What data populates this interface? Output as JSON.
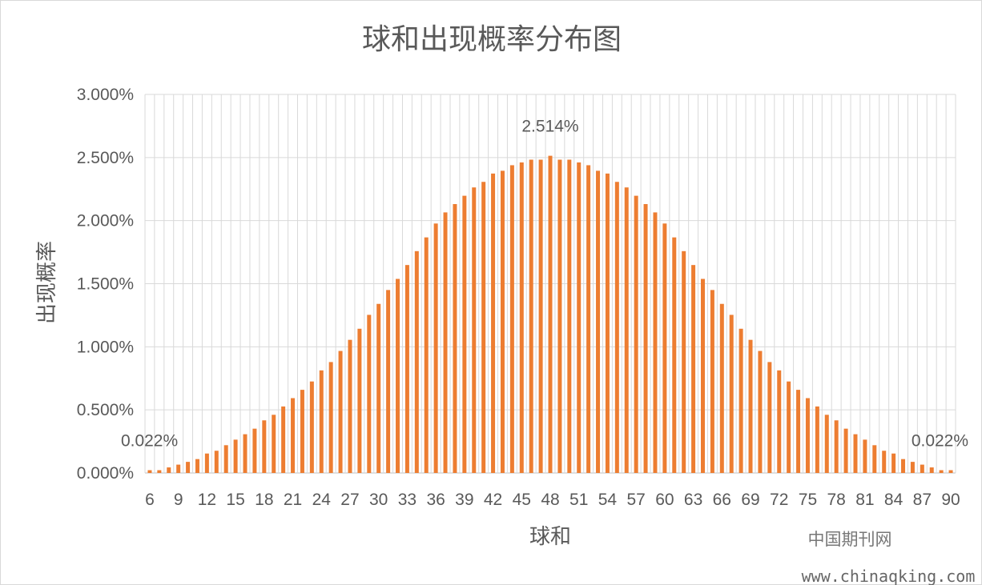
{
  "chart_data": {
    "type": "bar",
    "title": "球和出现概率分布图",
    "xlabel": "球和",
    "ylabel": "出现概率",
    "x_min": 6,
    "x_max": 90,
    "x_tick_labels": [
      "6",
      "9",
      "12",
      "15",
      "18",
      "21",
      "24",
      "27",
      "30",
      "33",
      "36",
      "39",
      "42",
      "45",
      "48",
      "51",
      "54",
      "57",
      "60",
      "63",
      "66",
      "69",
      "72",
      "75",
      "78",
      "81",
      "84",
      "87",
      "90"
    ],
    "y_tick_labels": [
      "0.000%",
      "0.500%",
      "1.000%",
      "1.500%",
      "2.000%",
      "2.500%",
      "3.000%"
    ],
    "ylim": [
      0,
      3
    ],
    "y_unit": "%",
    "grid": true,
    "legend": "none",
    "bar_color": "#ed7d31",
    "values": [
      0.022,
      0.022,
      0.044,
      0.066,
      0.088,
      0.11,
      0.154,
      0.176,
      0.22,
      0.264,
      0.307,
      0.351,
      0.417,
      0.461,
      0.527,
      0.593,
      0.659,
      0.725,
      0.813,
      0.879,
      0.967,
      1.055,
      1.143,
      1.253,
      1.34,
      1.45,
      1.538,
      1.648,
      1.758,
      1.867,
      1.977,
      2.065,
      2.131,
      2.197,
      2.263,
      2.307,
      2.373,
      2.395,
      2.439,
      2.461,
      2.483,
      2.483,
      2.514,
      2.483,
      2.483,
      2.461,
      2.439,
      2.395,
      2.373,
      2.307,
      2.263,
      2.197,
      2.131,
      2.065,
      1.977,
      1.867,
      1.758,
      1.648,
      1.538,
      1.45,
      1.34,
      1.253,
      1.143,
      1.055,
      0.967,
      0.879,
      0.813,
      0.725,
      0.659,
      0.593,
      0.527,
      0.461,
      0.417,
      0.351,
      0.307,
      0.264,
      0.22,
      0.176,
      0.154,
      0.11,
      0.088,
      0.066,
      0.044,
      0.022,
      0.022
    ],
    "annotations": [
      {
        "x": 6,
        "text": "0.022%"
      },
      {
        "x": 48,
        "text": "2.514%"
      },
      {
        "x": 90,
        "text": "0.022%"
      }
    ]
  },
  "watermark": {
    "cn": "中国期刊网",
    "url": "www.chinaqking.com"
  }
}
